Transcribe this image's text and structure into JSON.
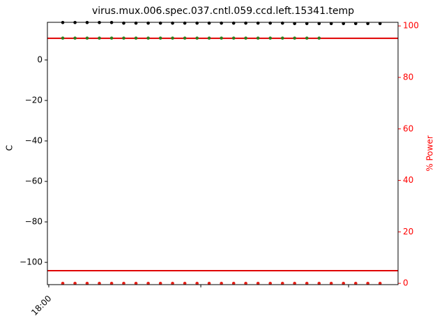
{
  "chart_data": {
    "type": "scatter",
    "title": "virus.mux.006.spec.037.cntl.059.ccd.left.15341.temp",
    "ylabel": "C",
    "y2label": "% Power",
    "y2color": "#ff0000",
    "x": [
      1.12,
      2.1,
      3.07,
      4.05,
      5.03,
      6.0,
      6.98,
      7.96,
      8.94,
      9.91,
      10.89,
      11.87,
      12.84,
      13.82,
      14.8,
      15.77,
      16.75,
      17.73,
      18.71,
      19.68,
      20.66,
      21.64,
      22.61,
      23.59,
      24.57,
      25.54,
      26.52
    ],
    "series": [
      {
        "color": "#000000",
        "values": [
          18.5,
          18.5,
          18.5,
          18.5,
          18.5,
          18.2,
          18.2,
          18.2,
          18.2,
          18.2,
          18.2,
          18.2,
          18.2,
          18.2,
          18.2,
          18.2,
          18.2,
          18.2,
          18.2,
          18.0,
          18.0,
          18.0,
          18.0,
          18.0,
          18.0,
          18.0,
          18.0
        ]
      },
      {
        "color": "#2e7d1e",
        "values": [
          10.8,
          10.8,
          10.8,
          10.8,
          10.8,
          10.8,
          10.8,
          10.8,
          10.8,
          10.8,
          10.8,
          10.8,
          10.8,
          10.8,
          10.8,
          10.8,
          10.8,
          10.8,
          10.8,
          10.8,
          10.8,
          10.8,
          null,
          null,
          null,
          null,
          null
        ]
      },
      {
        "color": "#e8221a",
        "axis": "y2",
        "values": [
          0,
          0,
          0,
          0,
          0,
          0,
          0,
          0,
          0,
          0,
          0,
          0,
          0,
          0,
          0,
          0,
          0,
          0,
          0,
          0,
          0,
          0,
          0,
          0,
          0,
          0,
          0
        ]
      }
    ],
    "hlines": {
      "color": "#e00000",
      "values": [
        10.7,
        -104.1
      ]
    },
    "xlim": [
      -0.11,
      27.96
    ],
    "xticks": [
      {
        "value": 0,
        "label": "18:00"
      },
      {
        "value": 12.17,
        "label": null
      },
      {
        "value": 24,
        "label": null
      }
    ],
    "ylim": [
      -111,
      18.6
    ],
    "yticks": [
      {
        "value": -100,
        "label": "−100"
      },
      {
        "value": -80,
        "label": "−80"
      },
      {
        "value": -60,
        "label": "−60"
      },
      {
        "value": -40,
        "label": "−40"
      },
      {
        "value": -20,
        "label": "−20"
      },
      0
    ],
    "y2lim": [
      -0.5,
      101.4
    ],
    "y2ticks": [
      0,
      20,
      40,
      60,
      80,
      100
    ]
  }
}
